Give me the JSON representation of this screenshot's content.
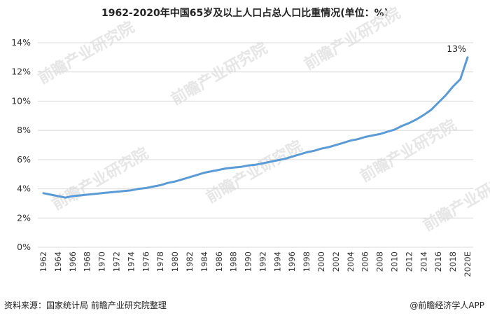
{
  "chart_data": {
    "type": "line",
    "title": "1962-2020年中国65岁及以上人口占总人口比重情况(单位：%)",
    "xlabel": "",
    "ylabel": "",
    "ylim": [
      0,
      14
    ],
    "yticks": [
      "0%",
      "2%",
      "4%",
      "6%",
      "8%",
      "10%",
      "12%",
      "14%"
    ],
    "grid": true,
    "legend": "none",
    "x_tick_labels": [
      "1962",
      "1964",
      "1966",
      "1968",
      "1970",
      "1972",
      "1974",
      "1976",
      "1978",
      "1980",
      "1982",
      "1984",
      "1986",
      "1988",
      "1990",
      "1992",
      "1994",
      "1996",
      "1998",
      "2000",
      "2002",
      "2004",
      "2006",
      "2008",
      "2010",
      "2012",
      "2014",
      "2016",
      "2018",
      "2020E"
    ],
    "x": [
      "1962",
      "1963",
      "1964",
      "1965",
      "1966",
      "1967",
      "1968",
      "1969",
      "1970",
      "1971",
      "1972",
      "1973",
      "1974",
      "1975",
      "1976",
      "1977",
      "1978",
      "1979",
      "1980",
      "1981",
      "1982",
      "1983",
      "1984",
      "1985",
      "1986",
      "1987",
      "1988",
      "1989",
      "1990",
      "1991",
      "1992",
      "1993",
      "1994",
      "1995",
      "1996",
      "1997",
      "1998",
      "1999",
      "2000",
      "2001",
      "2002",
      "2003",
      "2004",
      "2005",
      "2006",
      "2007",
      "2008",
      "2009",
      "2010",
      "2011",
      "2012",
      "2013",
      "2014",
      "2015",
      "2016",
      "2017",
      "2018",
      "2019",
      "2020E"
    ],
    "series": [
      {
        "color": "#5b9bd5",
        "values": [
          3.7,
          3.6,
          3.5,
          3.4,
          3.5,
          3.55,
          3.6,
          3.65,
          3.7,
          3.75,
          3.8,
          3.85,
          3.9,
          4.0,
          4.05,
          4.15,
          4.25,
          4.4,
          4.5,
          4.65,
          4.8,
          4.95,
          5.1,
          5.2,
          5.3,
          5.4,
          5.45,
          5.5,
          5.6,
          5.65,
          5.75,
          5.85,
          5.95,
          6.05,
          6.2,
          6.35,
          6.5,
          6.6,
          6.75,
          6.85,
          7.0,
          7.15,
          7.3,
          7.4,
          7.55,
          7.65,
          7.75,
          7.9,
          8.05,
          8.3,
          8.5,
          8.75,
          9.05,
          9.4,
          9.9,
          10.4,
          11.0,
          11.5,
          13.0
        ]
      }
    ],
    "annotations": [
      {
        "text": "13%"
      }
    ]
  },
  "footer": {
    "source": "资料来源：国家统计局 前瞻产业研究院整理",
    "brand": "@前瞻经济学人APP"
  },
  "watermark": {
    "text": "前瞻产业研究院"
  }
}
